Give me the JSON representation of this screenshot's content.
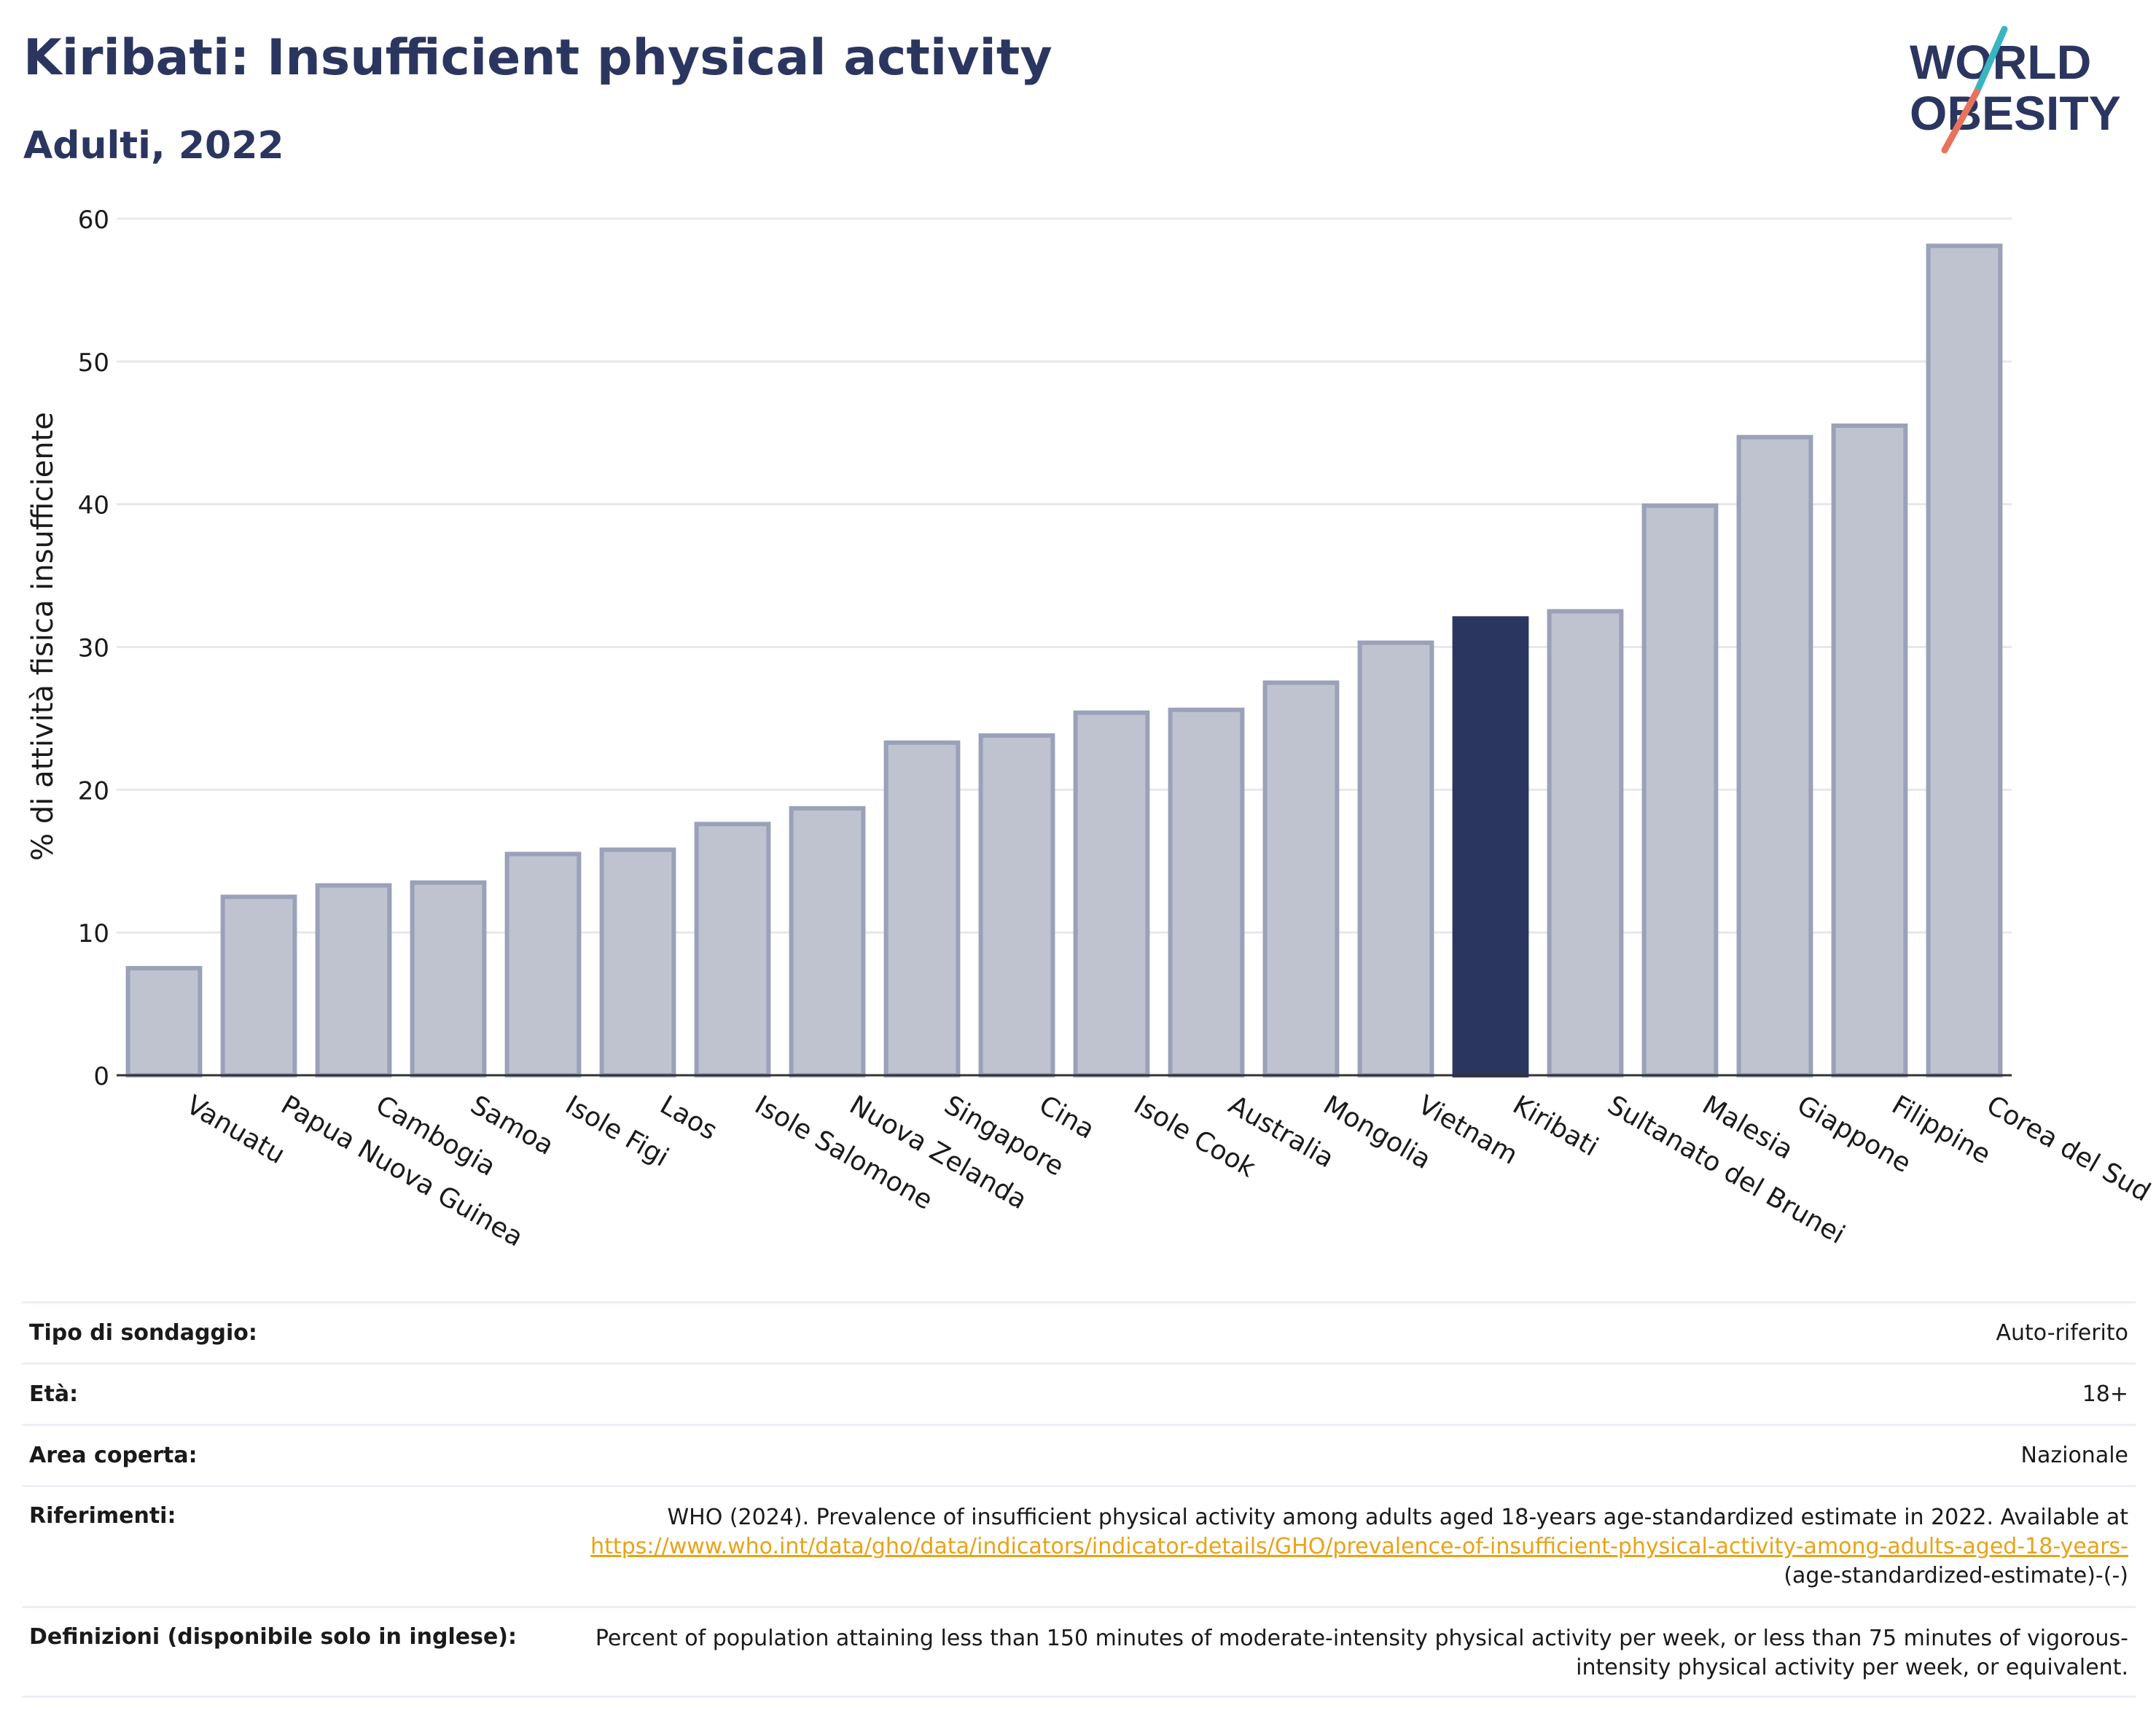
{
  "header": {
    "title": "Kiribati: Insufficient physical activity",
    "subtitle": "Adulti, 2022"
  },
  "logo": {
    "line1": "WORLD",
    "line2": "OBESITY",
    "text_color": "#2b3660",
    "slash_colors": [
      "#3bb4c1",
      "#e8735c"
    ]
  },
  "chart_data": {
    "type": "bar",
    "categories": [
      "Vanuatu",
      "Papua Nuova Guinea",
      "Cambogia",
      "Samoa",
      "Isole Figi",
      "Laos",
      "Isole Salomone",
      "Nuova Zelanda",
      "Singapore",
      "Cina",
      "Isole Cook",
      "Australia",
      "Mongolia",
      "Vietnam",
      "Kiribati",
      "Sultanato del Brunei",
      "Malesia",
      "Giappone",
      "Filippine",
      "Corea del Sud"
    ],
    "values": [
      7.5,
      12.5,
      13.3,
      13.5,
      15.5,
      15.8,
      17.6,
      18.7,
      23.3,
      23.8,
      25.4,
      25.6,
      27.5,
      30.3,
      32.0,
      32.5,
      39.9,
      44.7,
      45.5,
      58.1
    ],
    "highlight": "Kiribati",
    "ylabel": "% di attività fisica insufficiente",
    "xlabel": "",
    "ylim": [
      0,
      60
    ],
    "yticks": [
      0,
      10,
      20,
      30,
      40,
      50,
      60
    ],
    "grid": true,
    "colors": {
      "bar": "#bfc3d0",
      "bar_border": "#9aa1b8",
      "highlight": "#2b3660",
      "gridline": "#e6e8ee",
      "axis": "#333333"
    }
  },
  "info": {
    "rows": [
      {
        "label": "Tipo di sondaggio:",
        "value": "Auto-riferito"
      },
      {
        "label": "Età:",
        "value": "18+"
      },
      {
        "label": "Area coperta:",
        "value": "Nazionale"
      },
      {
        "label": "Riferimenti:",
        "value": "WHO (2024). Prevalence of insufficient physical activity among adults aged 18-years age-standardized estimate in 2022. Available at",
        "link": "https://www.who.int/data/gho/data/indicators/indicator-details/GHO/prevalence-of-insufficient-physical-activity-among-adults-aged-18-years-",
        "suffix": "(age-standardized-estimate)-(-)"
      },
      {
        "label": "Definizioni (disponibile solo in inglese):",
        "value": "Percent of population attaining less than 150 minutes of moderate-intensity physical activity per week, or less than 75 minutes of vigorous-intensity physical activity per week, or equivalent."
      }
    ]
  }
}
